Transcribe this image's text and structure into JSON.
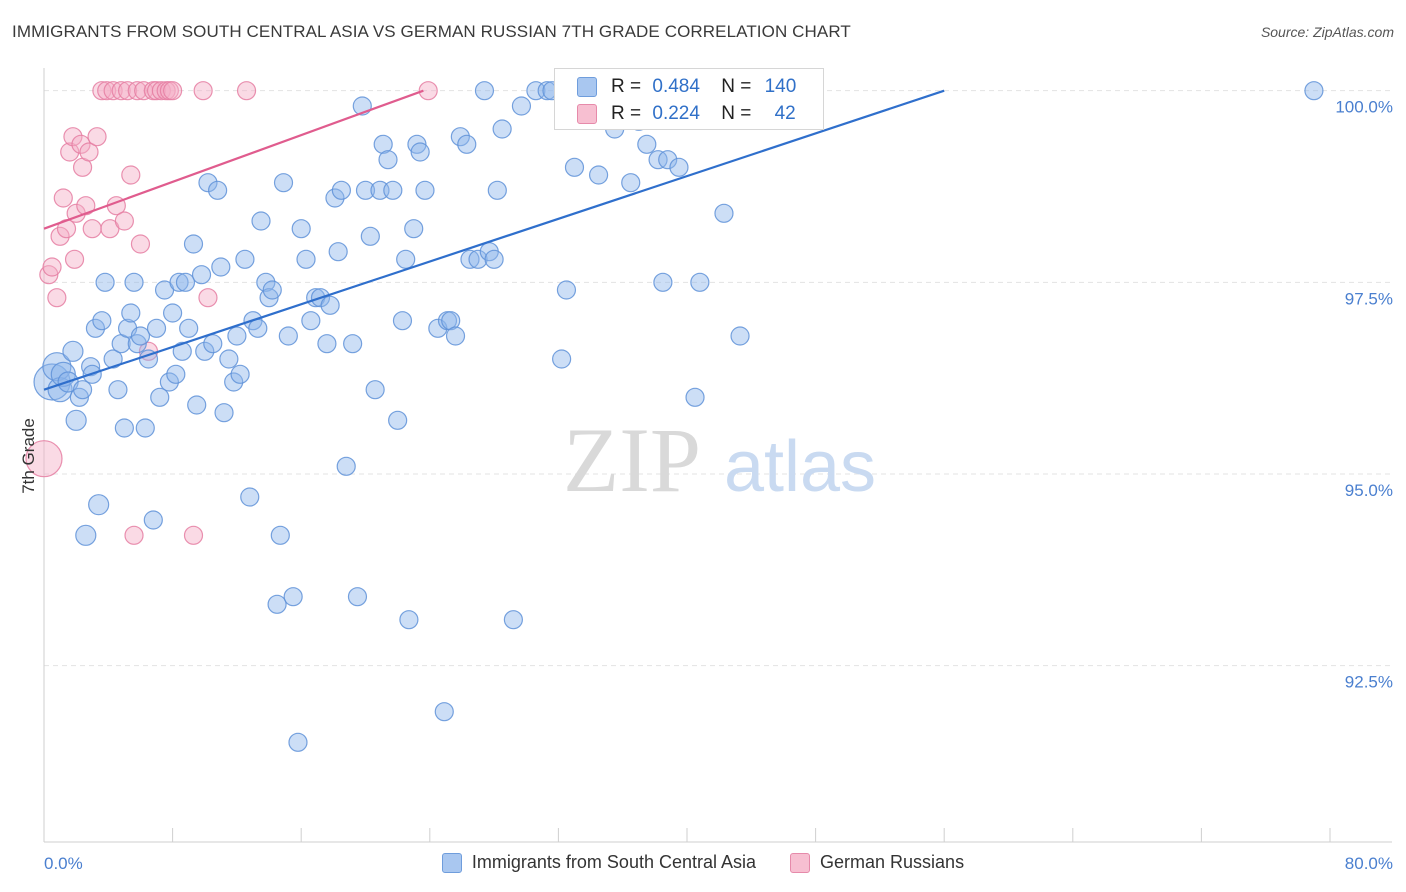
{
  "title": "IMMIGRANTS FROM SOUTH CENTRAL ASIA VS GERMAN RUSSIAN 7TH GRADE CORRELATION CHART",
  "source": "Source: ZipAtlas.com",
  "watermark": {
    "zip": "ZIP",
    "atlas": "atlas"
  },
  "stats": [
    {
      "r_label": "R =",
      "r": "0.484",
      "n_label": "N =",
      "n": "140",
      "color": "#a9c7f0",
      "border": "#6f9ddc"
    },
    {
      "r_label": "R =",
      "r": "0.224",
      "n_label": "N =",
      "n": "42",
      "color": "#f7bfd1",
      "border": "#e68aaa"
    }
  ],
  "legend": [
    {
      "label": "Immigrants from South Central Asia",
      "color": "#a9c7f0",
      "border": "#6f9ddc"
    },
    {
      "label": "German Russians",
      "color": "#f7bfd1",
      "border": "#e68aaa"
    }
  ],
  "chart_data": {
    "type": "scatter",
    "ylabel": "7th Grade",
    "xlim": [
      0,
      80
    ],
    "ylim": [
      90.2,
      100.4
    ],
    "x_tick_labels": [
      {
        "value": 0,
        "label": "0.0%"
      },
      {
        "value": 80,
        "label": "80.0%"
      }
    ],
    "x_minor_ticks": [
      8,
      16,
      24,
      32,
      40,
      48,
      56,
      64,
      72,
      80
    ],
    "y_ticks": [
      {
        "value": 100.0,
        "label": "100.0%"
      },
      {
        "value": 97.5,
        "label": "97.5%"
      },
      {
        "value": 95.0,
        "label": "95.0%"
      },
      {
        "value": 92.5,
        "label": "92.5%"
      }
    ],
    "grid": true,
    "series": [
      {
        "name": "Immigrants from South Central Asia",
        "color": "#8fb6ea",
        "stroke": "#5f92d8",
        "trend": {
          "color": "#2f6fcc",
          "x": [
            0,
            56
          ],
          "y": [
            96.1,
            100.0
          ]
        },
        "points": [
          [
            0.5,
            96.2,
            18
          ],
          [
            0.8,
            96.4,
            14
          ],
          [
            1,
            96.1,
            12
          ],
          [
            1.2,
            96.3,
            12
          ],
          [
            1.5,
            96.2,
            10
          ],
          [
            1.8,
            96.6,
            10
          ],
          [
            2,
            95.7,
            10
          ],
          [
            2.2,
            96.0,
            9
          ],
          [
            2.4,
            96.1,
            9
          ],
          [
            2.6,
            94.2,
            10
          ],
          [
            2.9,
            96.4,
            9
          ],
          [
            3,
            96.3,
            9
          ],
          [
            3.2,
            96.9,
            9
          ],
          [
            3.4,
            94.6,
            10
          ],
          [
            3.6,
            97.0,
            9
          ],
          [
            3.8,
            97.5,
            9
          ],
          [
            4.3,
            96.5,
            9
          ],
          [
            4.6,
            96.1,
            9
          ],
          [
            4.8,
            96.7,
            9
          ],
          [
            5,
            95.6,
            9
          ],
          [
            5.2,
            96.9,
            9
          ],
          [
            5.4,
            97.1,
            9
          ],
          [
            5.6,
            97.5,
            9
          ],
          [
            5.8,
            96.7,
            9
          ],
          [
            6,
            96.8,
            9
          ],
          [
            6.3,
            95.6,
            9
          ],
          [
            6.5,
            96.5,
            9
          ],
          [
            6.8,
            94.4,
            9
          ],
          [
            7,
            96.9,
            9
          ],
          [
            7.2,
            96.0,
            9
          ],
          [
            7.5,
            97.4,
            9
          ],
          [
            7.8,
            96.2,
            9
          ],
          [
            8,
            97.1,
            9
          ],
          [
            8.2,
            96.3,
            9
          ],
          [
            8.4,
            97.5,
            9
          ],
          [
            8.6,
            96.6,
            9
          ],
          [
            8.8,
            97.5,
            9
          ],
          [
            9,
            96.9,
            9
          ],
          [
            9.3,
            98.0,
            9
          ],
          [
            9.5,
            95.9,
            9
          ],
          [
            9.8,
            97.6,
            9
          ],
          [
            10,
            96.6,
            9
          ],
          [
            10.2,
            98.8,
            9
          ],
          [
            10.5,
            96.7,
            9
          ],
          [
            10.8,
            98.7,
            9
          ],
          [
            11,
            97.7,
            9
          ],
          [
            11.2,
            95.8,
            9
          ],
          [
            11.5,
            96.5,
            9
          ],
          [
            11.8,
            96.2,
            9
          ],
          [
            12,
            96.8,
            9
          ],
          [
            12.2,
            96.3,
            9
          ],
          [
            12.5,
            97.8,
            9
          ],
          [
            12.8,
            94.7,
            9
          ],
          [
            13,
            97.0,
            9
          ],
          [
            13.3,
            96.9,
            9
          ],
          [
            13.5,
            98.3,
            9
          ],
          [
            13.8,
            97.5,
            9
          ],
          [
            14,
            97.3,
            9
          ],
          [
            14.2,
            97.4,
            9
          ],
          [
            14.5,
            93.3,
            9
          ],
          [
            14.7,
            94.2,
            9
          ],
          [
            14.9,
            98.8,
            9
          ],
          [
            15.2,
            96.8,
            9
          ],
          [
            15.5,
            93.4,
            9
          ],
          [
            15.8,
            91.5,
            9
          ],
          [
            16,
            98.2,
            9
          ],
          [
            16.3,
            97.8,
            9
          ],
          [
            16.6,
            97.0,
            9
          ],
          [
            16.9,
            97.3,
            9
          ],
          [
            17.2,
            97.3,
            9
          ],
          [
            17.6,
            96.7,
            9
          ],
          [
            17.8,
            97.2,
            9
          ],
          [
            18.1,
            98.6,
            9
          ],
          [
            18.3,
            97.9,
            9
          ],
          [
            18.5,
            98.7,
            9
          ],
          [
            18.8,
            95.1,
            9
          ],
          [
            19.2,
            96.7,
            9
          ],
          [
            19.5,
            93.4,
            9
          ],
          [
            19.8,
            99.8,
            9
          ],
          [
            20,
            98.7,
            9
          ],
          [
            20.3,
            98.1,
            9
          ],
          [
            20.6,
            96.1,
            9
          ],
          [
            20.9,
            98.7,
            9
          ],
          [
            21.1,
            99.3,
            9
          ],
          [
            21.4,
            99.1,
            9
          ],
          [
            21.7,
            98.7,
            9
          ],
          [
            22,
            95.7,
            9
          ],
          [
            22.3,
            97.0,
            9
          ],
          [
            22.5,
            97.8,
            9
          ],
          [
            22.7,
            93.1,
            9
          ],
          [
            23,
            98.2,
            9
          ],
          [
            23.2,
            99.3,
            9
          ],
          [
            23.4,
            99.2,
            9
          ],
          [
            23.7,
            98.7,
            9
          ],
          [
            24.5,
            96.9,
            9
          ],
          [
            24.9,
            91.9,
            9
          ],
          [
            25.1,
            97.0,
            9
          ],
          [
            25.3,
            97.0,
            9
          ],
          [
            25.6,
            96.8,
            9
          ],
          [
            25.9,
            99.4,
            9
          ],
          [
            26.3,
            99.3,
            9
          ],
          [
            26.5,
            97.8,
            9
          ],
          [
            27,
            97.8,
            9
          ],
          [
            27.4,
            100.0,
            9
          ],
          [
            27.7,
            97.9,
            9
          ],
          [
            28,
            97.8,
            9
          ],
          [
            28.2,
            98.7,
            9
          ],
          [
            28.5,
            99.5,
            9
          ],
          [
            29.2,
            93.1,
            9
          ],
          [
            29.7,
            99.8,
            9
          ],
          [
            30.6,
            100.0,
            9
          ],
          [
            31.3,
            100.0,
            9
          ],
          [
            31.6,
            100.0,
            9
          ],
          [
            32.2,
            96.5,
            9
          ],
          [
            32.5,
            97.4,
            9
          ],
          [
            33,
            99.0,
            9
          ],
          [
            33.3,
            100.0,
            9
          ],
          [
            34.5,
            98.9,
            9
          ],
          [
            34.9,
            100.0,
            9
          ],
          [
            35.5,
            99.5,
            9
          ],
          [
            36.5,
            98.8,
            9
          ],
          [
            37,
            99.6,
            9
          ],
          [
            37.5,
            99.3,
            9
          ],
          [
            38.2,
            99.1,
            9
          ],
          [
            38.5,
            97.5,
            9
          ],
          [
            38.8,
            99.1,
            9
          ],
          [
            39,
            100.0,
            9
          ],
          [
            39.5,
            99.0,
            9
          ],
          [
            39.7,
            100.0,
            9
          ],
          [
            40,
            100.0,
            9
          ],
          [
            40.5,
            96.0,
            9
          ],
          [
            40.8,
            97.5,
            9
          ],
          [
            41.3,
            100.0,
            9
          ],
          [
            42.3,
            98.4,
            9
          ],
          [
            43.3,
            96.8,
            9
          ],
          [
            44.5,
            100.0,
            9
          ],
          [
            79,
            100.0,
            9
          ]
        ]
      },
      {
        "name": "German Russians",
        "color": "#f4aec6",
        "stroke": "#e57ea2",
        "trend": {
          "color": "#e05c8e",
          "x": [
            0,
            23.6
          ],
          "y": [
            98.2,
            100.0
          ]
        },
        "points": [
          [
            0,
            95.2,
            18
          ],
          [
            0.3,
            97.6,
            9
          ],
          [
            0.5,
            97.7,
            9
          ],
          [
            0.8,
            97.3,
            9
          ],
          [
            1,
            98.1,
            9
          ],
          [
            1.2,
            98.6,
            9
          ],
          [
            1.4,
            98.2,
            9
          ],
          [
            1.6,
            99.2,
            9
          ],
          [
            1.8,
            99.4,
            9
          ],
          [
            1.9,
            97.8,
            9
          ],
          [
            2,
            98.4,
            9
          ],
          [
            2.3,
            99.3,
            9
          ],
          [
            2.4,
            99.0,
            9
          ],
          [
            2.6,
            98.5,
            9
          ],
          [
            2.8,
            99.2,
            9
          ],
          [
            3,
            98.2,
            9
          ],
          [
            3.3,
            99.4,
            9
          ],
          [
            3.6,
            100.0,
            9
          ],
          [
            3.9,
            100.0,
            9
          ],
          [
            4.1,
            98.2,
            9
          ],
          [
            4.3,
            100.0,
            9
          ],
          [
            4.5,
            98.5,
            9
          ],
          [
            4.8,
            100.0,
            9
          ],
          [
            5,
            98.3,
            9
          ],
          [
            5.2,
            100.0,
            9
          ],
          [
            5.4,
            98.9,
            9
          ],
          [
            5.6,
            94.2,
            9
          ],
          [
            5.8,
            100.0,
            9
          ],
          [
            6,
            98.0,
            9
          ],
          [
            6.2,
            100.0,
            9
          ],
          [
            6.5,
            96.6,
            9
          ],
          [
            6.8,
            100.0,
            9
          ],
          [
            7,
            100.0,
            9
          ],
          [
            7.3,
            100.0,
            9
          ],
          [
            7.6,
            100.0,
            9
          ],
          [
            7.8,
            100.0,
            9
          ],
          [
            8,
            100.0,
            9
          ],
          [
            9.3,
            94.2,
            9
          ],
          [
            9.9,
            100.0,
            9
          ],
          [
            10.2,
            97.3,
            9
          ],
          [
            12.6,
            100.0,
            9
          ],
          [
            23.9,
            100.0,
            9
          ]
        ]
      }
    ]
  }
}
